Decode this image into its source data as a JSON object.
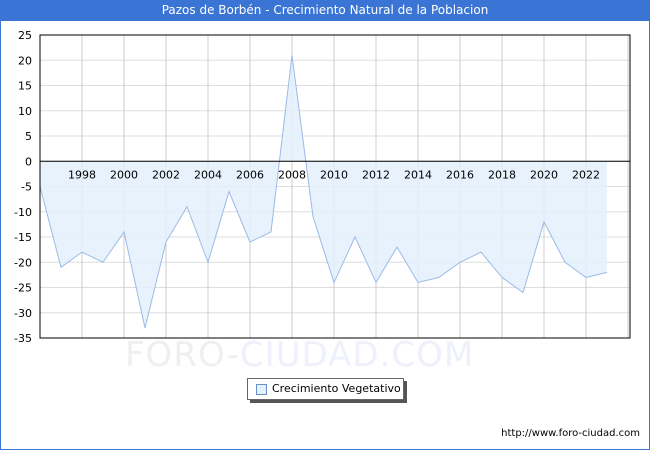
{
  "title": "Pazos de Borbén - Crecimiento Natural de la Poblacion",
  "legend": {
    "label": "Crecimiento Vegetativo",
    "swatch_color": "#e3f0fd"
  },
  "watermark": {
    "part1": "FORO-",
    "part2": "CIUDAD.COM"
  },
  "url": "http://www.foro-ciudad.com",
  "colors": {
    "title_bar": "#3a75d6",
    "fill": "#e3f0fd",
    "line": "#9bbbe8",
    "grid": "#dddddd"
  },
  "chart_data": {
    "type": "area",
    "title": "Pazos de Borbén - Crecimiento Natural de la Poblacion",
    "xlabel": "",
    "ylabel": "",
    "ylim": [
      -35,
      25
    ],
    "yticks": [
      25,
      20,
      15,
      10,
      5,
      0,
      -5,
      -10,
      -15,
      -20,
      -25,
      -30,
      -35
    ],
    "xtick_labels": [
      "1998",
      "2000",
      "2002",
      "2004",
      "2006",
      "2008",
      "2010",
      "2012",
      "2014",
      "2016",
      "2018",
      "2020",
      "2022"
    ],
    "grid": true,
    "legend_position": "bottom",
    "x": [
      1996,
      1997,
      1998,
      1999,
      2000,
      2001,
      2002,
      2003,
      2004,
      2005,
      2006,
      2007,
      2008,
      2009,
      2010,
      2011,
      2012,
      2013,
      2014,
      2015,
      2016,
      2017,
      2018,
      2019,
      2020,
      2021,
      2022,
      2023
    ],
    "series": [
      {
        "name": "Crecimiento Vegetativo",
        "values": [
          -5,
          -21,
          -18,
          -20,
          -14,
          -33,
          -16,
          -9,
          -20,
          -6,
          -16,
          -14,
          21,
          -11,
          -24,
          -15,
          -24,
          -17,
          -24,
          -23,
          -20,
          -18,
          -23,
          -26,
          -12,
          -20,
          -23,
          -22
        ]
      }
    ]
  }
}
